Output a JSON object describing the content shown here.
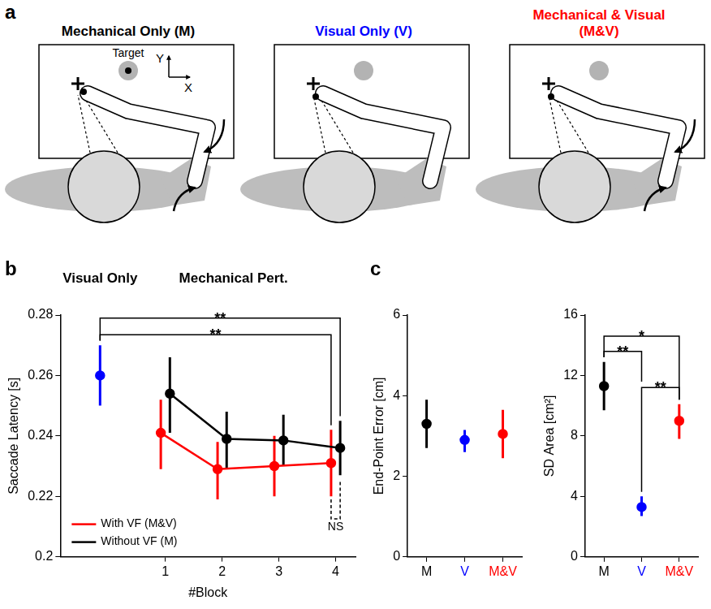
{
  "diagram": {
    "letter": "a",
    "panels": [
      {
        "title": "Mechanical Only (M)",
        "color": "#000000",
        "target_label": "Target",
        "axis_labels": [
          "Y",
          "X"
        ],
        "mechanical": true,
        "visual": false
      },
      {
        "title": "Visual Only (V)",
        "color": "#0000ff",
        "mechanical": false,
        "visual": true
      },
      {
        "title": "Mechanical & Visual (M&V)",
        "color": "#ff0000",
        "mechanical": true,
        "visual": true
      }
    ]
  },
  "chart_data": [
    {
      "panel": "b",
      "type": "line",
      "headers": [
        {
          "text": "Visual Only",
          "x": -0.15
        },
        {
          "text": "Mechanical Pert.",
          "x": 2.2
        }
      ],
      "x_label": "#Block",
      "y_label": "Saccade Latency [s]",
      "xlim": [
        -0.85,
        4.35
      ],
      "xticks": [
        1,
        2,
        3,
        4
      ],
      "ylim": [
        0.2,
        0.28
      ],
      "yticks": [
        0.2,
        0.22,
        0.24,
        0.26,
        0.28
      ],
      "grid": false,
      "legend": "lower left",
      "series": [
        {
          "color": "#0000ff",
          "marker": "circle",
          "x": [
            -0.15
          ],
          "values": [
            0.26
          ],
          "error_low": [
            0.25
          ],
          "error_high": [
            0.27
          ]
        },
        {
          "name": "With VF (M&V)",
          "color": "#ff0000",
          "marker": "circle",
          "line_style": "solid",
          "x": [
            0.92,
            1.92,
            2.92,
            3.92
          ],
          "values": [
            0.241,
            0.229,
            0.23,
            0.231
          ],
          "error_low": [
            0.229,
            0.219,
            0.22,
            0.22
          ],
          "error_high": [
            0.252,
            0.238,
            0.24,
            0.242
          ]
        },
        {
          "name": "Without VF (M)",
          "color": "#000000",
          "marker": "circle",
          "line_style": "solid",
          "x": [
            1.08,
            2.08,
            3.08,
            4.08
          ],
          "values": [
            0.254,
            0.239,
            0.2385,
            0.236
          ],
          "error_low": [
            0.241,
            0.229,
            0.23,
            0.227
          ],
          "error_high": [
            0.266,
            0.248,
            0.247,
            0.245
          ]
        }
      ],
      "annotations": [
        {
          "text": "**",
          "x": [
            -0.15,
            4.08
          ],
          "y": 0.279,
          "ends": [
            0.2715,
            0.2465
          ]
        },
        {
          "text": "**",
          "x": [
            -0.15,
            3.92
          ],
          "y": 0.2735,
          "ends": [
            0.2715,
            0.2435
          ]
        },
        {
          "text": "NS",
          "x": [
            3.92,
            4.08
          ],
          "y": 0.2125,
          "ends": [
            0.219,
            0.2255
          ],
          "line_style": "dashed"
        }
      ]
    },
    {
      "panel": "c",
      "type": "scatter",
      "y_label": "End-Point Error [cm]",
      "categories": [
        "M",
        "V",
        "M&V"
      ],
      "values": [
        3.3,
        2.9,
        3.05
      ],
      "error_low": [
        2.7,
        2.6,
        2.45
      ],
      "error_high": [
        3.9,
        3.15,
        3.65
      ],
      "colors": [
        "#000000",
        "#0000ff",
        "#ff0000"
      ],
      "marker": "circle",
      "ylim": [
        0,
        6
      ],
      "yticks": [
        0,
        2,
        4,
        6
      ],
      "grid": false
    },
    {
      "type": "scatter",
      "y_label": "SD Area [cm²]",
      "categories": [
        "M",
        "V",
        "M&V"
      ],
      "values": [
        11.3,
        3.3,
        9.0
      ],
      "error_low": [
        9.7,
        2.7,
        7.8
      ],
      "error_high": [
        12.9,
        4.0,
        10.1
      ],
      "colors": [
        "#000000",
        "#0000ff",
        "#ff0000"
      ],
      "marker": "circle",
      "ylim": [
        0,
        16
      ],
      "yticks": [
        0,
        4,
        8,
        12,
        16
      ],
      "grid": false,
      "annotations": [
        {
          "text": "*",
          "x": [
            "M",
            "M&V"
          ],
          "y": 14.6,
          "ends": [
            13.2,
            10.4
          ]
        },
        {
          "text": "**",
          "x": [
            "M",
            "V"
          ],
          "y": 13.6,
          "ends": [
            13.2,
            11.6
          ]
        },
        {
          "text": "**",
          "x": [
            "V",
            "M&V"
          ],
          "y": 11.2,
          "ends": [
            4.3,
            10.4
          ]
        }
      ]
    }
  ]
}
